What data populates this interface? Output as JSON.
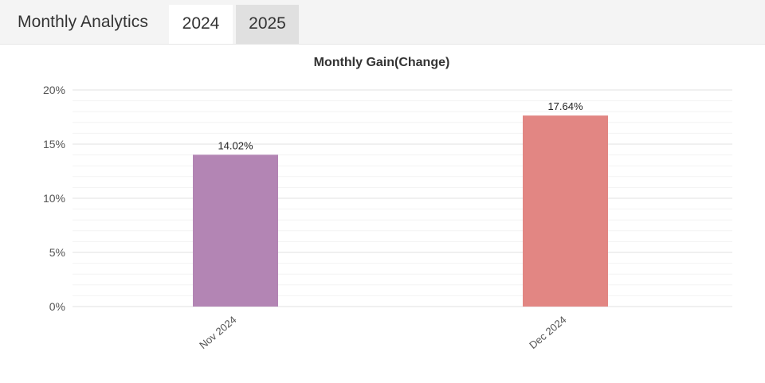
{
  "header": {
    "title": "Monthly Analytics",
    "tabs": [
      {
        "label": "2024",
        "active": true
      },
      {
        "label": "2025",
        "active": false
      }
    ]
  },
  "colors": {
    "header_bg": "#f4f4f4",
    "active_tab_bg": "#ffffff",
    "inactive_tab_bg": "#e0e0e0",
    "grid_major": "#e6e6e6",
    "grid_minor": "#f3f3f3"
  },
  "chart_data": {
    "type": "bar",
    "title": "Monthly Gain(Change)",
    "xlabel": "",
    "ylabel": "",
    "categories": [
      "Nov 2024",
      "Dec 2024"
    ],
    "values": [
      14.02,
      17.64
    ],
    "value_labels": [
      "14.02%",
      "17.64%"
    ],
    "bar_colors": [
      "#b385b4",
      "#e28683"
    ],
    "ylim": [
      0,
      20
    ],
    "y_ticks": [
      0,
      5,
      10,
      15,
      20
    ],
    "y_tick_labels": [
      "0%",
      "5%",
      "10%",
      "15%",
      "20%"
    ],
    "grid": true,
    "legend": "none"
  }
}
